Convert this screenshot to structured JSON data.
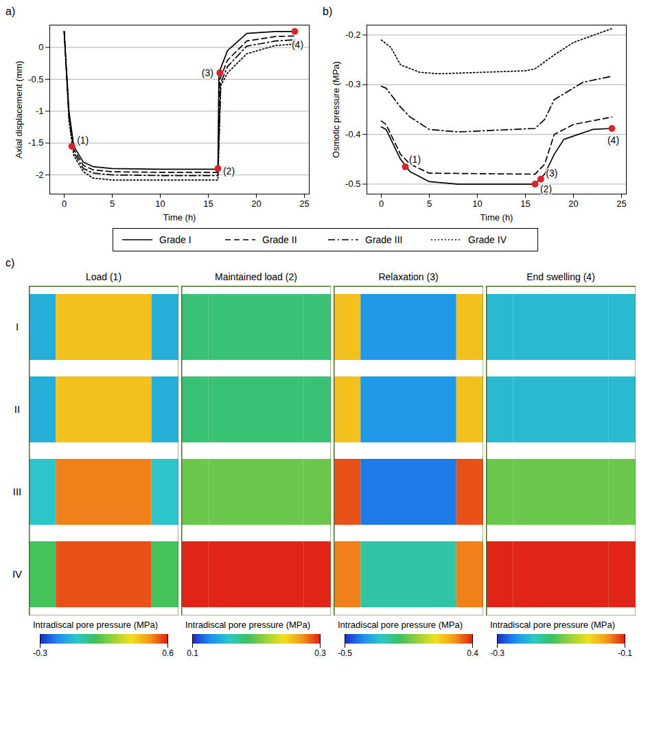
{
  "chart_data": [
    {
      "type": "line",
      "label": "a)",
      "x_label": "Time (h)",
      "y_label": "Axial displacement (mm)",
      "xlim": [
        -1.5,
        25.5
      ],
      "xticks": [
        0,
        5,
        10,
        15,
        20,
        25
      ],
      "ylim": [
        -2.3,
        0.35
      ],
      "yticks": [
        0,
        -0.5,
        -1,
        -1.5,
        -2
      ],
      "grid": true,
      "legend": "bottom",
      "series": [
        {
          "name": "Grade I",
          "color": "#000000",
          "line_style": "solid",
          "x": [
            0,
            0.5,
            1,
            2,
            3,
            5,
            10,
            16,
            16.1,
            17,
            19,
            22,
            24
          ],
          "values": [
            0.25,
            -1.0,
            -1.55,
            -1.8,
            -1.87,
            -1.9,
            -1.91,
            -1.91,
            -0.4,
            -0.05,
            0.22,
            0.25,
            0.25
          ]
        },
        {
          "name": "Grade II",
          "color": "#000000",
          "line_style": "dashed",
          "x": [
            0,
            0.5,
            1,
            2,
            3,
            5,
            10,
            16,
            16.2,
            17,
            19,
            22,
            24
          ],
          "values": [
            0.25,
            -1.05,
            -1.6,
            -1.85,
            -1.92,
            -1.95,
            -1.96,
            -1.96,
            -0.5,
            -0.2,
            0.1,
            0.17,
            0.18
          ]
        },
        {
          "name": "Grade III",
          "color": "#000000",
          "line_style": "dashdot",
          "x": [
            0,
            0.5,
            1,
            2,
            3,
            5,
            10,
            16,
            16.3,
            17,
            19,
            22,
            24
          ],
          "values": [
            0.25,
            -1.1,
            -1.65,
            -1.9,
            -1.97,
            -2.0,
            -2.01,
            -2.01,
            -0.55,
            -0.3,
            0.02,
            0.1,
            0.12
          ]
        },
        {
          "name": "Grade IV",
          "color": "#000000",
          "line_style": "dotted",
          "x": [
            0,
            0.5,
            1,
            2,
            3,
            5,
            10,
            16,
            16.3,
            17,
            19,
            22,
            24
          ],
          "values": [
            0.25,
            -1.15,
            -1.7,
            -1.95,
            -2.05,
            -2.08,
            -2.08,
            -2.08,
            -0.6,
            -0.4,
            -0.1,
            0.03,
            0.05
          ]
        }
      ],
      "annotations": {
        "color": "#d7262b",
        "points": [
          {
            "x": 0.8,
            "y": -1.55,
            "text": "(1)"
          },
          {
            "x": 16,
            "y": -1.9,
            "text": "(2)"
          },
          {
            "x": 16.2,
            "y": -0.4,
            "text": "(3)"
          },
          {
            "x": 24,
            "y": 0.25,
            "text": "(4)"
          }
        ]
      }
    },
    {
      "type": "line",
      "label": "b)",
      "x_label": "Time (h)",
      "y_label": "Osmotic pressure (MPa)",
      "xlim": [
        -1.5,
        25.5
      ],
      "xticks": [
        0,
        5,
        10,
        15,
        20,
        25
      ],
      "ylim": [
        -0.52,
        -0.18
      ],
      "yticks": [
        -0.2,
        -0.3,
        -0.4,
        -0.5
      ],
      "grid": true,
      "series": [
        {
          "name": "Grade I",
          "color": "#000000",
          "line_style": "solid",
          "x": [
            0,
            0.5,
            1,
            2,
            3,
            5,
            8,
            16,
            17,
            18,
            19,
            22,
            24
          ],
          "values": [
            -0.385,
            -0.39,
            -0.41,
            -0.45,
            -0.475,
            -0.495,
            -0.5,
            -0.5,
            -0.48,
            -0.44,
            -0.41,
            -0.39,
            -0.388
          ]
        },
        {
          "name": "Grade II",
          "color": "#000000",
          "line_style": "dashed",
          "x": [
            0,
            0.5,
            2,
            3,
            5,
            16,
            17,
            18,
            20,
            24
          ],
          "values": [
            -0.373,
            -0.38,
            -0.44,
            -0.46,
            -0.478,
            -0.48,
            -0.46,
            -0.4,
            -0.38,
            -0.365
          ]
        },
        {
          "name": "Grade III",
          "color": "#000000",
          "line_style": "dashdot",
          "x": [
            0,
            0.5,
            2,
            3,
            5,
            8,
            16,
            17,
            18,
            21,
            24
          ],
          "values": [
            -0.303,
            -0.307,
            -0.345,
            -0.365,
            -0.39,
            -0.395,
            -0.388,
            -0.37,
            -0.33,
            -0.295,
            -0.283
          ]
        },
        {
          "name": "Grade IV",
          "color": "#000000",
          "line_style": "dotted",
          "x": [
            0,
            1,
            2,
            4,
            6,
            15,
            16,
            18,
            20,
            24
          ],
          "values": [
            -0.21,
            -0.225,
            -0.26,
            -0.275,
            -0.278,
            -0.272,
            -0.268,
            -0.24,
            -0.215,
            -0.187
          ]
        }
      ],
      "annotations": {
        "color": "#d7262b",
        "points": [
          {
            "x": 2.5,
            "y": -0.465,
            "text": "(1)"
          },
          {
            "x": 16,
            "y": -0.5,
            "text": "(2)"
          },
          {
            "x": 16.6,
            "y": -0.49,
            "text": "(3)"
          },
          {
            "x": 24,
            "y": -0.388,
            "text": "(4)"
          }
        ]
      }
    },
    {
      "type": "heatmap",
      "label": "c)",
      "rows": [
        "I",
        "II",
        "III",
        "IV"
      ],
      "panels": [
        {
          "title": "Load (1)",
          "colorbar": {
            "label": "Intradiscal pore pressure (MPa)",
            "range": [
              -0.3,
              0.6
            ],
            "ticks": [
              -0.3,
              0.6
            ]
          },
          "nucleus": [
            0.4,
            0.4,
            0.5,
            0.55
          ],
          "annulus": [
            -0.1,
            -0.1,
            -0.05,
            0.1
          ]
        },
        {
          "title": "Maintained load (2)",
          "colorbar": {
            "label": "Intradiscal pore pressure (MPa)",
            "range": [
              0.1,
              0.3
            ],
            "ticks": [
              0.1,
              0.3
            ]
          },
          "nucleus": [
            0.18,
            0.18,
            0.2,
            0.3
          ],
          "annulus": [
            0.18,
            0.18,
            0.2,
            0.3
          ]
        },
        {
          "title": "Relaxation (3)",
          "colorbar": {
            "label": "Intradiscal pore pressure (MPa)",
            "range": [
              -0.5,
              0.4
            ],
            "ticks": [
              -0.5,
              0.4
            ]
          },
          "nucleus": [
            -0.35,
            -0.35,
            -0.4,
            -0.2
          ],
          "annulus": [
            0.2,
            0.2,
            0.35,
            0.3
          ]
        },
        {
          "title": "End swelling (4)",
          "colorbar": {
            "label": "Intradiscal pore pressure (MPa)",
            "range": [
              -0.3,
              -0.1
            ],
            "ticks": [
              -0.3,
              -0.1
            ]
          },
          "nucleus": [
            -0.25,
            -0.25,
            -0.2,
            -0.1
          ],
          "annulus": [
            -0.25,
            -0.25,
            -0.2,
            -0.1
          ]
        }
      ]
    }
  ]
}
